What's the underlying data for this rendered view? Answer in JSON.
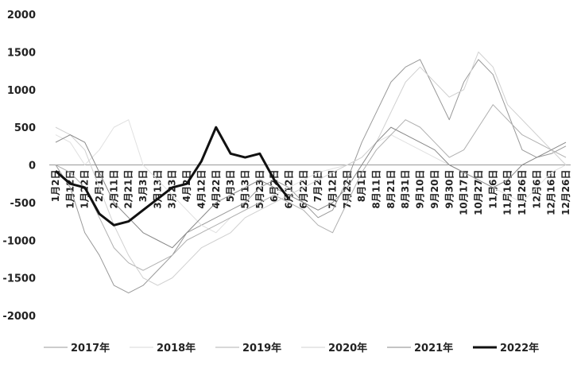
{
  "chart_data": {
    "type": "line",
    "categories": [
      "1月2日",
      "1月12日",
      "1月22日",
      "2月1日",
      "2月11日",
      "2月21日",
      "3月3日",
      "3月13日",
      "3月23日",
      "4月2日",
      "4月12日",
      "4月22日",
      "5月3日",
      "5月13日",
      "5月23日",
      "6月2日",
      "6月12日",
      "6月22日",
      "7月2日",
      "7月12日",
      "7月22日",
      "8月1日",
      "8月11日",
      "8月21日",
      "8月31日",
      "9月10日",
      "9月20日",
      "9月30日",
      "10月17日",
      "10月27日",
      "11月6日",
      "11月16日",
      "11月26日",
      "12月6日",
      "12月16日",
      "12月26日"
    ],
    "series": [
      {
        "name": "2017年",
        "color": "#999999",
        "width": 1,
        "values": [
          0,
          -300,
          -900,
          -1200,
          -1600,
          -1700,
          -1600,
          -1400,
          -1200,
          -900,
          -800,
          -700,
          -600,
          -500,
          -300,
          -200,
          -300,
          -500,
          -700,
          -600,
          -200,
          300,
          700,
          1100,
          1300,
          1400,
          1000,
          600,
          1100,
          1400,
          1200,
          700,
          200,
          100,
          150,
          250
        ]
      },
      {
        "name": "2018年",
        "color": "#e0e0e0",
        "width": 1,
        "values": [
          400,
          300,
          0,
          200,
          500,
          600,
          0,
          -200,
          -400,
          -600,
          -800,
          -900,
          -700,
          -600,
          -500,
          -400,
          -300,
          -200,
          -100,
          -50,
          0,
          100,
          300,
          400,
          300,
          200,
          100,
          0,
          -100,
          -200,
          -300,
          -400,
          -500,
          -300,
          -100,
          0
        ]
      },
      {
        "name": "2019年",
        "color": "#b0b0b0",
        "width": 1,
        "values": [
          0,
          -100,
          -300,
          -700,
          -1100,
          -1300,
          -1400,
          -1300,
          -1200,
          -1000,
          -900,
          -800,
          -700,
          -600,
          -500,
          -400,
          -500,
          -600,
          -800,
          -900,
          -500,
          -100,
          200,
          400,
          600,
          500,
          300,
          100,
          200,
          500,
          800,
          600,
          400,
          300,
          200,
          100
        ]
      },
      {
        "name": "2020年",
        "color": "#d0d0d0",
        "width": 1,
        "values": [
          500,
          400,
          200,
          -300,
          -800,
          -1200,
          -1500,
          -1600,
          -1500,
          -1300,
          -1100,
          -1000,
          -900,
          -700,
          -600,
          -500,
          -400,
          -300,
          -200,
          -100,
          0,
          100,
          300,
          700,
          1100,
          1300,
          1100,
          900,
          1000,
          1500,
          1300,
          800,
          600,
          400,
          200,
          0
        ]
      },
      {
        "name": "2021年",
        "color": "#888888",
        "width": 1,
        "values": [
          300,
          400,
          300,
          -100,
          -500,
          -700,
          -900,
          -1000,
          -1100,
          -900,
          -700,
          -500,
          -400,
          -300,
          -200,
          -300,
          -400,
          -500,
          -600,
          -500,
          -300,
          0,
          300,
          500,
          400,
          300,
          200,
          0,
          -100,
          -200,
          -300,
          -200,
          0,
          100,
          200,
          300
        ]
      },
      {
        "name": "2022年",
        "color": "#111111",
        "width": 3,
        "values": [
          -80,
          -250,
          -300,
          -650,
          -800,
          -750,
          -600,
          -450,
          -300,
          -250,
          50,
          500,
          150,
          100,
          150,
          -200,
          -450,
          null,
          null,
          null,
          null,
          null,
          null,
          null,
          null,
          null,
          null,
          null,
          null,
          null,
          null,
          null,
          null,
          null,
          null,
          null
        ]
      }
    ],
    "ylim": [
      -2000,
      2000
    ],
    "yticks": [
      -2000,
      -1500,
      -1000,
      -500,
      0,
      500,
      1000,
      1500,
      2000
    ]
  }
}
